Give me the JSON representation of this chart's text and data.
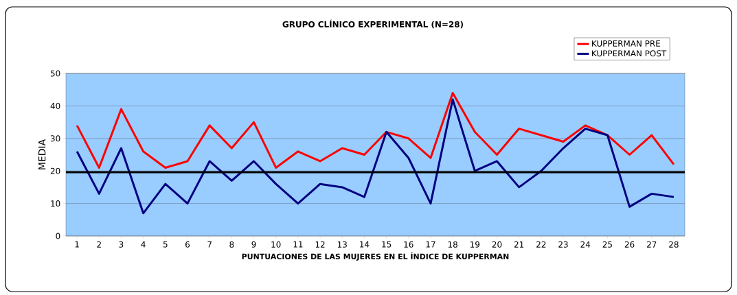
{
  "chart_data": {
    "type": "line",
    "title": "GRUPO CLÍNICO EXPERIMENTAL (N=28)",
    "xlabel": "PUNTUACIONES DE LAS MUJERES EN EL ÍNDICE DE KUPPERMAN",
    "ylabel": "MEDIA",
    "categories": [
      "1",
      "2",
      "3",
      "4",
      "5",
      "6",
      "7",
      "8",
      "9",
      "10",
      "11",
      "12",
      "13",
      "14",
      "15",
      "16",
      "17",
      "18",
      "19",
      "20",
      "21",
      "22",
      "23",
      "24",
      "25",
      "26",
      "27",
      "28"
    ],
    "series": [
      {
        "name": "KUPPERMAN PRE",
        "color": "#ff0000",
        "values": [
          34,
          21,
          39,
          26,
          21,
          23,
          34,
          27,
          35,
          21,
          26,
          23,
          27,
          25,
          32,
          30,
          24,
          44,
          32,
          25,
          33,
          31,
          29,
          34,
          31,
          25,
          31,
          22
        ]
      },
      {
        "name": "KUPPERMAN POST",
        "color": "#000080",
        "values": [
          26,
          13,
          27,
          7,
          16,
          10,
          23,
          17,
          23,
          16,
          10,
          16,
          15,
          12,
          32,
          24,
          10,
          42,
          20,
          23,
          15,
          20,
          27,
          33,
          31,
          9,
          13,
          12
        ]
      }
    ],
    "ylim": [
      0,
      50
    ],
    "yticks": [
      0,
      10,
      20,
      30,
      40,
      50
    ],
    "grid": "y",
    "legend": "top right",
    "marker": "none",
    "line_style": "solid",
    "ref_lines": [
      {
        "axis": "y",
        "value": 19.6,
        "color": "#000000"
      }
    ]
  }
}
